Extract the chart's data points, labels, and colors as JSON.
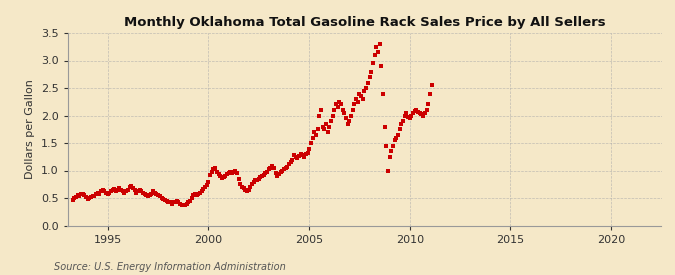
{
  "title": "Monthly Oklahoma Total Gasoline Rack Sales Price by All Sellers",
  "ylabel": "Dollars per Gallon",
  "source": "Source: U.S. Energy Information Administration",
  "xlim": [
    1993.0,
    2022.5
  ],
  "ylim": [
    0.0,
    3.5
  ],
  "yticks": [
    0.0,
    0.5,
    1.0,
    1.5,
    2.0,
    2.5,
    3.0,
    3.5
  ],
  "xticks": [
    1995,
    2000,
    2005,
    2010,
    2015,
    2020
  ],
  "background_color": "#F5E8C8",
  "marker_color": "#CC0000",
  "grid_color": "#AAAAAA",
  "data": [
    [
      1993.25,
      0.47
    ],
    [
      1993.33,
      0.5
    ],
    [
      1993.42,
      0.52
    ],
    [
      1993.5,
      0.55
    ],
    [
      1993.58,
      0.53
    ],
    [
      1993.67,
      0.57
    ],
    [
      1993.75,
      0.58
    ],
    [
      1993.83,
      0.55
    ],
    [
      1993.92,
      0.52
    ],
    [
      1994.0,
      0.49
    ],
    [
      1994.08,
      0.5
    ],
    [
      1994.17,
      0.52
    ],
    [
      1994.25,
      0.54
    ],
    [
      1994.33,
      0.53
    ],
    [
      1994.42,
      0.57
    ],
    [
      1994.5,
      0.6
    ],
    [
      1994.58,
      0.58
    ],
    [
      1994.67,
      0.62
    ],
    [
      1994.75,
      0.65
    ],
    [
      1994.83,
      0.63
    ],
    [
      1994.92,
      0.6
    ],
    [
      1995.0,
      0.58
    ],
    [
      1995.08,
      0.6
    ],
    [
      1995.17,
      0.62
    ],
    [
      1995.25,
      0.65
    ],
    [
      1995.33,
      0.67
    ],
    [
      1995.42,
      0.63
    ],
    [
      1995.5,
      0.65
    ],
    [
      1995.58,
      0.68
    ],
    [
      1995.67,
      0.65
    ],
    [
      1995.75,
      0.63
    ],
    [
      1995.83,
      0.6
    ],
    [
      1995.92,
      0.62
    ],
    [
      1996.0,
      0.65
    ],
    [
      1996.08,
      0.7
    ],
    [
      1996.17,
      0.72
    ],
    [
      1996.25,
      0.68
    ],
    [
      1996.33,
      0.65
    ],
    [
      1996.42,
      0.6
    ],
    [
      1996.5,
      0.63
    ],
    [
      1996.58,
      0.65
    ],
    [
      1996.67,
      0.63
    ],
    [
      1996.75,
      0.6
    ],
    [
      1996.83,
      0.57
    ],
    [
      1996.92,
      0.55
    ],
    [
      1997.0,
      0.53
    ],
    [
      1997.08,
      0.55
    ],
    [
      1997.17,
      0.58
    ],
    [
      1997.25,
      0.62
    ],
    [
      1997.33,
      0.6
    ],
    [
      1997.42,
      0.57
    ],
    [
      1997.5,
      0.55
    ],
    [
      1997.58,
      0.53
    ],
    [
      1997.67,
      0.5
    ],
    [
      1997.75,
      0.48
    ],
    [
      1997.83,
      0.47
    ],
    [
      1997.92,
      0.45
    ],
    [
      1998.0,
      0.43
    ],
    [
      1998.08,
      0.42
    ],
    [
      1998.17,
      0.4
    ],
    [
      1998.25,
      0.42
    ],
    [
      1998.33,
      0.43
    ],
    [
      1998.42,
      0.45
    ],
    [
      1998.5,
      0.42
    ],
    [
      1998.58,
      0.4
    ],
    [
      1998.67,
      0.38
    ],
    [
      1998.75,
      0.37
    ],
    [
      1998.83,
      0.38
    ],
    [
      1998.92,
      0.4
    ],
    [
      1999.0,
      0.42
    ],
    [
      1999.08,
      0.45
    ],
    [
      1999.17,
      0.5
    ],
    [
      1999.25,
      0.55
    ],
    [
      1999.33,
      0.58
    ],
    [
      1999.42,
      0.55
    ],
    [
      1999.5,
      0.57
    ],
    [
      1999.58,
      0.6
    ],
    [
      1999.67,
      0.63
    ],
    [
      1999.75,
      0.67
    ],
    [
      1999.83,
      0.7
    ],
    [
      1999.92,
      0.73
    ],
    [
      2000.0,
      0.8
    ],
    [
      2000.08,
      0.92
    ],
    [
      2000.17,
      0.97
    ],
    [
      2000.25,
      1.02
    ],
    [
      2000.33,
      1.05
    ],
    [
      2000.42,
      0.97
    ],
    [
      2000.5,
      0.93
    ],
    [
      2000.58,
      0.9
    ],
    [
      2000.67,
      0.87
    ],
    [
      2000.75,
      0.88
    ],
    [
      2000.83,
      0.9
    ],
    [
      2000.92,
      0.93
    ],
    [
      2001.0,
      0.95
    ],
    [
      2001.08,
      0.98
    ],
    [
      2001.17,
      0.95
    ],
    [
      2001.25,
      0.97
    ],
    [
      2001.33,
      1.0
    ],
    [
      2001.42,
      0.95
    ],
    [
      2001.5,
      0.85
    ],
    [
      2001.58,
      0.75
    ],
    [
      2001.67,
      0.7
    ],
    [
      2001.75,
      0.68
    ],
    [
      2001.83,
      0.65
    ],
    [
      2001.92,
      0.62
    ],
    [
      2002.0,
      0.65
    ],
    [
      2002.08,
      0.7
    ],
    [
      2002.17,
      0.75
    ],
    [
      2002.25,
      0.8
    ],
    [
      2002.33,
      0.82
    ],
    [
      2002.42,
      0.83
    ],
    [
      2002.5,
      0.85
    ],
    [
      2002.58,
      0.88
    ],
    [
      2002.67,
      0.9
    ],
    [
      2002.75,
      0.92
    ],
    [
      2002.83,
      0.95
    ],
    [
      2002.92,
      0.98
    ],
    [
      2003.0,
      1.02
    ],
    [
      2003.08,
      1.05
    ],
    [
      2003.17,
      1.08
    ],
    [
      2003.25,
      1.05
    ],
    [
      2003.33,
      0.95
    ],
    [
      2003.42,
      0.9
    ],
    [
      2003.5,
      0.93
    ],
    [
      2003.58,
      0.97
    ],
    [
      2003.67,
      1.0
    ],
    [
      2003.75,
      1.03
    ],
    [
      2003.83,
      1.05
    ],
    [
      2003.92,
      1.07
    ],
    [
      2004.0,
      1.12
    ],
    [
      2004.08,
      1.15
    ],
    [
      2004.17,
      1.2
    ],
    [
      2004.25,
      1.28
    ],
    [
      2004.33,
      1.25
    ],
    [
      2004.42,
      1.22
    ],
    [
      2004.5,
      1.27
    ],
    [
      2004.58,
      1.3
    ],
    [
      2004.67,
      1.28
    ],
    [
      2004.75,
      1.25
    ],
    [
      2004.83,
      1.3
    ],
    [
      2004.92,
      1.32
    ],
    [
      2005.0,
      1.4
    ],
    [
      2005.08,
      1.5
    ],
    [
      2005.17,
      1.6
    ],
    [
      2005.25,
      1.7
    ],
    [
      2005.33,
      1.65
    ],
    [
      2005.42,
      1.75
    ],
    [
      2005.5,
      2.0
    ],
    [
      2005.58,
      2.1
    ],
    [
      2005.67,
      1.8
    ],
    [
      2005.75,
      1.75
    ],
    [
      2005.83,
      1.85
    ],
    [
      2005.92,
      1.7
    ],
    [
      2006.0,
      1.8
    ],
    [
      2006.08,
      1.9
    ],
    [
      2006.17,
      2.0
    ],
    [
      2006.25,
      2.1
    ],
    [
      2006.33,
      2.2
    ],
    [
      2006.42,
      2.15
    ],
    [
      2006.5,
      2.25
    ],
    [
      2006.58,
      2.2
    ],
    [
      2006.67,
      2.1
    ],
    [
      2006.75,
      2.05
    ],
    [
      2006.83,
      1.95
    ],
    [
      2006.92,
      1.85
    ],
    [
      2007.0,
      1.9
    ],
    [
      2007.08,
      2.0
    ],
    [
      2007.17,
      2.1
    ],
    [
      2007.25,
      2.2
    ],
    [
      2007.33,
      2.3
    ],
    [
      2007.42,
      2.25
    ],
    [
      2007.5,
      2.4
    ],
    [
      2007.58,
      2.35
    ],
    [
      2007.67,
      2.3
    ],
    [
      2007.75,
      2.45
    ],
    [
      2007.83,
      2.5
    ],
    [
      2007.92,
      2.6
    ],
    [
      2008.0,
      2.7
    ],
    [
      2008.08,
      2.8
    ],
    [
      2008.17,
      2.95
    ],
    [
      2008.25,
      3.1
    ],
    [
      2008.33,
      3.25
    ],
    [
      2008.42,
      3.15
    ],
    [
      2008.5,
      3.3
    ],
    [
      2008.58,
      2.9
    ],
    [
      2008.67,
      2.4
    ],
    [
      2008.75,
      1.8
    ],
    [
      2008.83,
      1.45
    ],
    [
      2008.92,
      1.0
    ],
    [
      2009.0,
      1.25
    ],
    [
      2009.08,
      1.35
    ],
    [
      2009.17,
      1.45
    ],
    [
      2009.25,
      1.55
    ],
    [
      2009.33,
      1.6
    ],
    [
      2009.42,
      1.65
    ],
    [
      2009.5,
      1.75
    ],
    [
      2009.58,
      1.85
    ],
    [
      2009.67,
      1.9
    ],
    [
      2009.75,
      2.0
    ],
    [
      2009.83,
      2.05
    ],
    [
      2009.92,
      1.97
    ],
    [
      2010.0,
      1.95
    ],
    [
      2010.08,
      2.0
    ],
    [
      2010.17,
      2.05
    ],
    [
      2010.25,
      2.08
    ],
    [
      2010.33,
      2.1
    ],
    [
      2010.42,
      2.07
    ],
    [
      2010.5,
      2.05
    ],
    [
      2010.58,
      2.03
    ],
    [
      2010.67,
      2.0
    ],
    [
      2010.75,
      2.05
    ],
    [
      2010.83,
      2.1
    ],
    [
      2010.92,
      2.2
    ],
    [
      2011.0,
      2.4
    ],
    [
      2011.08,
      2.55
    ]
  ]
}
